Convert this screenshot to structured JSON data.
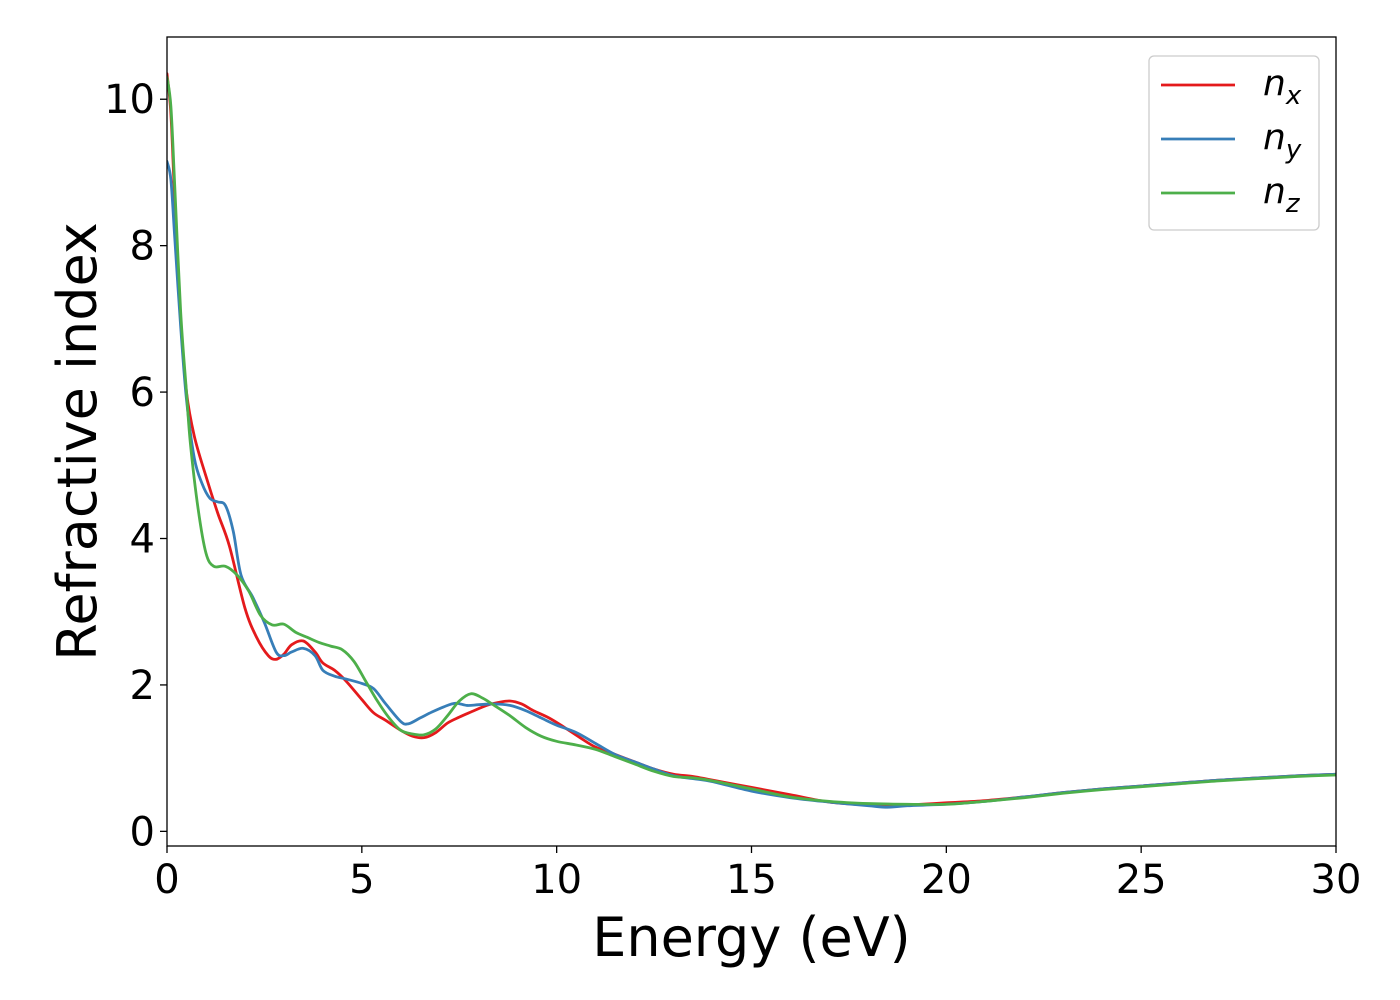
{
  "chart_data": {
    "type": "line",
    "xlabel": "Energy (eV)",
    "ylabel": "Refractive index",
    "xlim": [
      0,
      30
    ],
    "ylim": [
      -0.2,
      10.85
    ],
    "xticks": [
      0,
      5,
      10,
      15,
      20,
      25,
      30
    ],
    "yticks": [
      0,
      2,
      4,
      6,
      8,
      10
    ],
    "grid": false,
    "legend_position": "top-right",
    "series": [
      {
        "name": "n",
        "subscript": "x",
        "color": "#e41a1c",
        "x": [
          0.0,
          0.1,
          0.2,
          0.35,
          0.5,
          0.7,
          1.0,
          1.3,
          1.6,
          2.0,
          2.3,
          2.6,
          2.8,
          3.0,
          3.2,
          3.5,
          3.8,
          4.0,
          4.3,
          4.6,
          5.0,
          5.3,
          5.6,
          6.0,
          6.3,
          6.6,
          6.9,
          7.2,
          7.5,
          7.8,
          8.2,
          8.5,
          8.8,
          9.1,
          9.4,
          9.8,
          10.2,
          10.6,
          11.0,
          11.5,
          12.0,
          12.5,
          13.0,
          13.5,
          14.0,
          15.0,
          16.0,
          17.0,
          18.0,
          18.5,
          19.0,
          20.0,
          21.0,
          22.0,
          23.0,
          24.0,
          25.0,
          26.0,
          27.0,
          28.0,
          29.0,
          30.0
        ],
        "y": [
          10.35,
          9.8,
          8.6,
          7.0,
          6.0,
          5.4,
          4.85,
          4.35,
          3.9,
          3.05,
          2.65,
          2.4,
          2.35,
          2.42,
          2.55,
          2.6,
          2.45,
          2.3,
          2.2,
          2.05,
          1.8,
          1.62,
          1.52,
          1.38,
          1.3,
          1.28,
          1.35,
          1.48,
          1.56,
          1.63,
          1.72,
          1.76,
          1.78,
          1.74,
          1.65,
          1.55,
          1.42,
          1.28,
          1.15,
          1.05,
          0.95,
          0.85,
          0.78,
          0.75,
          0.7,
          0.6,
          0.5,
          0.4,
          0.36,
          0.35,
          0.36,
          0.39,
          0.42,
          0.47,
          0.53,
          0.58,
          0.62,
          0.66,
          0.7,
          0.73,
          0.76,
          0.78
        ]
      },
      {
        "name": "n",
        "subscript": "y",
        "color": "#377eb8",
        "x": [
          0.0,
          0.1,
          0.2,
          0.35,
          0.5,
          0.7,
          0.9,
          1.1,
          1.3,
          1.5,
          1.7,
          1.9,
          2.2,
          2.5,
          2.8,
          3.0,
          3.2,
          3.5,
          3.8,
          4.0,
          4.3,
          4.6,
          5.0,
          5.3,
          5.6,
          6.0,
          6.2,
          6.5,
          6.8,
          7.1,
          7.4,
          7.7,
          8.0,
          8.4,
          8.8,
          9.2,
          9.6,
          10.0,
          10.5,
          11.0,
          11.5,
          12.0,
          12.5,
          13.0,
          13.5,
          14.0,
          15.0,
          16.0,
          17.0,
          18.0,
          18.5,
          19.0,
          20.0,
          21.0,
          22.0,
          23.0,
          24.0,
          25.0,
          26.0,
          27.0,
          28.0,
          29.0,
          30.0
        ],
        "y": [
          9.15,
          8.9,
          8.1,
          6.9,
          5.9,
          5.1,
          4.75,
          4.55,
          4.5,
          4.45,
          4.1,
          3.5,
          3.2,
          2.85,
          2.45,
          2.4,
          2.45,
          2.5,
          2.4,
          2.2,
          2.12,
          2.08,
          2.02,
          1.95,
          1.75,
          1.5,
          1.47,
          1.55,
          1.63,
          1.7,
          1.75,
          1.72,
          1.73,
          1.74,
          1.72,
          1.65,
          1.55,
          1.45,
          1.35,
          1.2,
          1.05,
          0.95,
          0.85,
          0.76,
          0.72,
          0.68,
          0.55,
          0.46,
          0.4,
          0.35,
          0.33,
          0.35,
          0.37,
          0.41,
          0.47,
          0.53,
          0.58,
          0.62,
          0.66,
          0.7,
          0.73,
          0.76,
          0.78
        ]
      },
      {
        "name": "n",
        "subscript": "z",
        "color": "#4daf4a",
        "x": [
          0.0,
          0.1,
          0.2,
          0.35,
          0.5,
          0.6,
          0.8,
          1.0,
          1.2,
          1.5,
          1.8,
          2.1,
          2.4,
          2.7,
          3.0,
          3.3,
          3.6,
          3.9,
          4.2,
          4.5,
          4.8,
          5.1,
          5.4,
          5.7,
          6.0,
          6.3,
          6.6,
          6.9,
          7.2,
          7.5,
          7.8,
          8.1,
          8.4,
          8.8,
          9.2,
          9.6,
          10.0,
          10.5,
          11.0,
          11.5,
          12.0,
          12.5,
          13.0,
          13.5,
          14.0,
          15.0,
          16.0,
          17.0,
          18.0,
          19.0,
          20.0,
          21.0,
          22.0,
          23.0,
          24.0,
          25.0,
          26.0,
          27.0,
          28.0,
          29.0,
          30.0
        ],
        "y": [
          10.3,
          9.9,
          8.8,
          7.1,
          6.0,
          5.3,
          4.4,
          3.8,
          3.62,
          3.62,
          3.5,
          3.28,
          2.95,
          2.82,
          2.83,
          2.72,
          2.65,
          2.58,
          2.53,
          2.48,
          2.32,
          2.05,
          1.78,
          1.55,
          1.38,
          1.33,
          1.32,
          1.4,
          1.58,
          1.78,
          1.88,
          1.82,
          1.72,
          1.58,
          1.42,
          1.3,
          1.23,
          1.18,
          1.12,
          1.02,
          0.92,
          0.82,
          0.75,
          0.73,
          0.69,
          0.58,
          0.47,
          0.41,
          0.38,
          0.37,
          0.37,
          0.41,
          0.46,
          0.52,
          0.57,
          0.61,
          0.65,
          0.69,
          0.72,
          0.75,
          0.77
        ]
      }
    ]
  }
}
